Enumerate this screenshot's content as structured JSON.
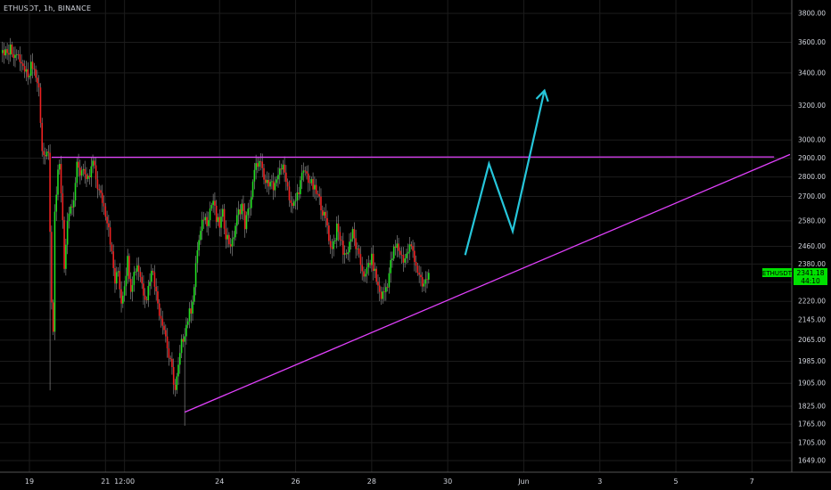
{
  "header": {
    "symbol_label": "ETHUSDT, 1h, BINANCE"
  },
  "price_badge": {
    "symbol": "ETHUSDT",
    "price": "2341.18",
    "countdown": "44:10"
  },
  "chart_data": {
    "type": "candlestick",
    "symbol": "ETHUSDT",
    "interval": "1h",
    "exchange": "BINANCE",
    "y_scale": "log",
    "ylim": [
      1620,
      3900
    ],
    "grid": true,
    "y_ticks": [
      3800,
      3600,
      3400,
      3200,
      3000,
      2900,
      2800,
      2700,
      2580,
      2460,
      2380,
      2300,
      2220,
      2145,
      2065,
      1985,
      1905,
      1825,
      1765,
      1705,
      1649
    ],
    "y_tick_labels": [
      "3800.00",
      "3600.00",
      "3400.00",
      "3200.00",
      "3000.00",
      "2900.00",
      "2800.00",
      "2700.00",
      "2580.00",
      "2460.00",
      "2380.00",
      "2300.00",
      "2220.00",
      "2145.00",
      "2065.00",
      "1985.00",
      "1905.00",
      "1825.00",
      "1765.00",
      "1705.00",
      "1649.00"
    ],
    "x_ticks": [
      {
        "label": "19",
        "t": 0
      },
      {
        "label": "21",
        "t": 48
      },
      {
        "label": "12:00",
        "t": 60
      },
      {
        "label": "24",
        "t": 120
      },
      {
        "label": "26",
        "t": 168
      },
      {
        "label": "28",
        "t": 216
      },
      {
        "label": "30",
        "t": 264
      },
      {
        "label": "Jun",
        "t": 312
      },
      {
        "label": "3",
        "t": 360
      },
      {
        "label": "5",
        "t": 408
      },
      {
        "label": "7",
        "t": 456
      }
    ],
    "price_path": [
      [
        -18,
        3540
      ],
      [
        -12,
        3560
      ],
      [
        -6,
        3480
      ],
      [
        -2,
        3390
      ],
      [
        0,
        3420
      ],
      [
        2,
        3460
      ],
      [
        6,
        3300
      ],
      [
        8,
        2950
      ],
      [
        10,
        2880
      ],
      [
        12,
        2950
      ],
      [
        13,
        2500
      ],
      [
        14,
        2200
      ],
      [
        15,
        2100
      ],
      [
        16,
        2600
      ],
      [
        18,
        2830
      ],
      [
        19,
        2880
      ],
      [
        20,
        2700
      ],
      [
        21,
        2580
      ],
      [
        22,
        2350
      ],
      [
        24,
        2600
      ],
      [
        26,
        2650
      ],
      [
        28,
        2700
      ],
      [
        30,
        2850
      ],
      [
        32,
        2820
      ],
      [
        34,
        2860
      ],
      [
        36,
        2760
      ],
      [
        38,
        2800
      ],
      [
        40,
        2880
      ],
      [
        42,
        2790
      ],
      [
        44,
        2720
      ],
      [
        46,
        2680
      ],
      [
        48,
        2620
      ],
      [
        50,
        2560
      ],
      [
        52,
        2420
      ],
      [
        54,
        2300
      ],
      [
        56,
        2350
      ],
      [
        58,
        2220
      ],
      [
        60,
        2300
      ],
      [
        62,
        2400
      ],
      [
        64,
        2280
      ],
      [
        66,
        2340
      ],
      [
        68,
        2380
      ],
      [
        70,
        2330
      ],
      [
        72,
        2260
      ],
      [
        74,
        2240
      ],
      [
        76,
        2320
      ],
      [
        78,
        2360
      ],
      [
        80,
        2250
      ],
      [
        82,
        2180
      ],
      [
        84,
        2140
      ],
      [
        86,
        2080
      ],
      [
        88,
        2000
      ],
      [
        90,
        1950
      ],
      [
        92,
        1880
      ],
      [
        94,
        1960
      ],
      [
        96,
        2050
      ],
      [
        98,
        2100
      ],
      [
        100,
        2150
      ],
      [
        102,
        2190
      ],
      [
        104,
        2280
      ],
      [
        106,
        2450
      ],
      [
        108,
        2520
      ],
      [
        110,
        2600
      ],
      [
        112,
        2580
      ],
      [
        114,
        2640
      ],
      [
        116,
        2680
      ],
      [
        118,
        2580
      ],
      [
        120,
        2560
      ],
      [
        122,
        2610
      ],
      [
        124,
        2520
      ],
      [
        126,
        2480
      ],
      [
        128,
        2470
      ],
      [
        130,
        2560
      ],
      [
        132,
        2620
      ],
      [
        134,
        2660
      ],
      [
        136,
        2560
      ],
      [
        138,
        2620
      ],
      [
        140,
        2700
      ],
      [
        142,
        2820
      ],
      [
        144,
        2880
      ],
      [
        146,
        2860
      ],
      [
        148,
        2780
      ],
      [
        150,
        2760
      ],
      [
        152,
        2800
      ],
      [
        154,
        2730
      ],
      [
        156,
        2760
      ],
      [
        158,
        2860
      ],
      [
        160,
        2840
      ],
      [
        162,
        2800
      ],
      [
        164,
        2700
      ],
      [
        166,
        2640
      ],
      [
        168,
        2680
      ],
      [
        170,
        2740
      ],
      [
        172,
        2800
      ],
      [
        174,
        2830
      ],
      [
        176,
        2790
      ],
      [
        178,
        2760
      ],
      [
        180,
        2730
      ],
      [
        182,
        2700
      ],
      [
        184,
        2660
      ],
      [
        186,
        2600
      ],
      [
        188,
        2560
      ],
      [
        190,
        2450
      ],
      [
        192,
        2480
      ],
      [
        194,
        2540
      ],
      [
        196,
        2500
      ],
      [
        198,
        2440
      ],
      [
        200,
        2420
      ],
      [
        202,
        2480
      ],
      [
        204,
        2520
      ],
      [
        206,
        2460
      ],
      [
        208,
        2400
      ],
      [
        210,
        2360
      ],
      [
        212,
        2320
      ],
      [
        214,
        2380
      ],
      [
        216,
        2400
      ],
      [
        218,
        2340
      ],
      [
        220,
        2280
      ],
      [
        222,
        2240
      ],
      [
        224,
        2260
      ],
      [
        226,
        2300
      ],
      [
        228,
        2380
      ],
      [
        230,
        2440
      ],
      [
        232,
        2460
      ],
      [
        234,
        2430
      ],
      [
        236,
        2400
      ],
      [
        238,
        2420
      ],
      [
        240,
        2460
      ],
      [
        242,
        2440
      ],
      [
        244,
        2380
      ],
      [
        246,
        2320
      ],
      [
        248,
        2280
      ],
      [
        250,
        2300
      ],
      [
        252,
        2341.18
      ]
    ],
    "spikes": [
      {
        "t": 13,
        "low": 1880
      },
      {
        "t": 15,
        "low": 2180
      },
      {
        "t": 98,
        "low": 1760
      },
      {
        "t": 246,
        "low": 2300
      }
    ],
    "resistance_line": {
      "points": [
        [
          14,
          2905
        ],
        [
          470,
          2907
        ]
      ],
      "color": "#e040fb"
    },
    "support_line": {
      "points": [
        [
          98,
          1805
        ],
        [
          480,
          2920
        ]
      ],
      "color": "#e040fb"
    },
    "projection_path": {
      "points": [
        [
          275,
          2420
        ],
        [
          290,
          2870
        ],
        [
          305,
          2530
        ],
        [
          325,
          3290
        ]
      ],
      "color": "#26c6da"
    },
    "colors": {
      "up": "#22dd22",
      "down": "#ee2222",
      "background": "#000000",
      "grid": "#1c1c1c",
      "badge": "#00e000"
    }
  }
}
